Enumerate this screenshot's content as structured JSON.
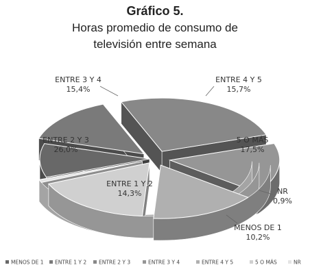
{
  "chart_data": {
    "type": "pie",
    "style": "3d-exploded",
    "title": "Gráfico 5.",
    "subtitle_lines": [
      "Horas promedio de consumo de",
      "televisión entre semana"
    ],
    "slices": [
      {
        "name": "MENOS DE 1",
        "label": "MENOS DE 1",
        "value": 10.2,
        "display": "10,2%",
        "color": "#686868"
      },
      {
        "name": "ENTRE 1 Y 2",
        "label": "ENTRE  1 Y 2",
        "value": 14.3,
        "display": "14,3%",
        "color": "#7a7a7a"
      },
      {
        "name": "ENTRE 2 Y 3",
        "label": "ENTRE  2 Y 3",
        "value": 26.0,
        "display": "26,0%",
        "color": "#888888"
      },
      {
        "name": "ENTRE 3 Y 4",
        "label": "ENTRE  3 Y 4",
        "value": 15.4,
        "display": "15,4%",
        "color": "#969696"
      },
      {
        "name": "ENTRE 4 Y 5",
        "label": "ENTRE  4 Y 5",
        "value": 15.7,
        "display": "15,7%",
        "color": "#b0b0b0"
      },
      {
        "name": "5 O MÁS",
        "label": "5 O MÁS",
        "value": 17.5,
        "display": "17,5%",
        "color": "#d0d0d0"
      },
      {
        "name": "NR",
        "label": "NR",
        "value": 0.9,
        "display": "0,9%",
        "color": "#e4e4e4"
      }
    ],
    "legend": {
      "position": "bottom",
      "entries": [
        "MENOS DE 1",
        "ENTRE 1 Y 2",
        "ENTRE 2 Y 3",
        "ENTRE 3 Y 4",
        "ENTRE 4 Y 5",
        "5 O MÁS",
        "NR"
      ]
    }
  }
}
